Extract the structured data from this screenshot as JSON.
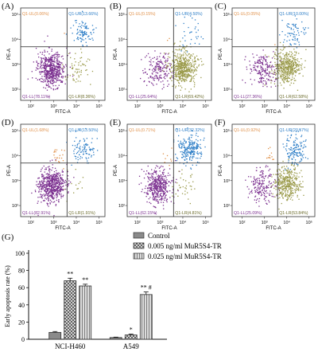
{
  "panels": [
    {
      "label": "(A)",
      "q_ul": "Q1-UL(0.06%)",
      "q_ur": "Q1-UR(13.66%)",
      "q_ll": "Q1-LL(78.11%)",
      "q_lr": "Q1-LR(8.36%)",
      "ul": 0.06,
      "ur": 13.66,
      "ll": 78.11,
      "lr": 8.36
    },
    {
      "label": "(B)",
      "q_ul": "Q1-UL(0.15%)",
      "q_ur": "Q1-UR(4.50%)",
      "q_ll": "Q1-LL(25.64%)",
      "q_lr": "Q1-LR(69.42%)",
      "ul": 0.15,
      "ur": 4.5,
      "ll": 25.64,
      "lr": 69.42
    },
    {
      "label": "(C)",
      "q_ul": "Q1-UL(0.05%)",
      "q_ur": "Q1-UR(10.00%)",
      "q_ll": "Q1-LL(27.36%)",
      "q_lr": "Q1-LR(62.58%)",
      "ul": 0.05,
      "ur": 10.0,
      "ll": 27.36,
      "lr": 62.58
    },
    {
      "label": "(D)",
      "q_ul": "Q1-UL(1.68%)",
      "q_ur": "Q1-UR(13.50%)",
      "q_ll": "Q1-LL(82.91%)",
      "q_lr": "Q1-LR(1.91%)",
      "ul": 1.68,
      "ur": 13.5,
      "ll": 82.91,
      "lr": 1.91
    },
    {
      "label": "(E)",
      "q_ul": "Q1-UL(0.71%)",
      "q_ur": "Q1-UR(32.32%)",
      "q_ll": "Q1-LL(62.15%)",
      "q_lr": "Q1-LR(4.81%)",
      "ul": 0.71,
      "ur": 32.32,
      "ll": 62.15,
      "lr": 4.81
    },
    {
      "label": "(F)",
      "q_ul": "Q1-UL(0.92%)",
      "q_ur": "Q1-UR(20.57%)",
      "q_ll": "Q1-LL(25.09%)",
      "q_lr": "Q1-LR(53.84%)",
      "ul": 0.92,
      "ur": 20.57,
      "ll": 25.09,
      "lr": 53.84
    }
  ],
  "flow_axes": {
    "xlabel": "FITC-A",
    "ylabel": "PE-A",
    "ticks": [
      "10²",
      "10³",
      "10⁴",
      "10⁵"
    ]
  },
  "colors": {
    "ll": "#7b2f8f",
    "lr": "#9a9a4a",
    "ur": "#2f7fc7",
    "ul": "#e0914a",
    "quad": "#222222",
    "control": "#8a8a8a",
    "mid": "#bbbbbb",
    "high": "#b5b5b5",
    "bar_stroke": "#333333"
  },
  "bar_panel_label": "(G)",
  "chart_data": {
    "type": "bar",
    "title": "",
    "ylabel": "Early apoptosis rate (%)",
    "xlabel": "",
    "ylim": [
      0,
      100
    ],
    "yticks": [
      0,
      20,
      40,
      60,
      80,
      100
    ],
    "categories": [
      "NCI-H460",
      "A549"
    ],
    "series": [
      {
        "name": "Control",
        "values": [
          8,
          2
        ],
        "errors": [
          1,
          0.5
        ],
        "sig": [
          "",
          ""
        ]
      },
      {
        "name": "0.005 ng/ml MuR5S4-TR",
        "values": [
          68,
          5
        ],
        "errors": [
          3,
          1
        ],
        "sig": [
          "**",
          "*"
        ]
      },
      {
        "name": "0.025 ng/ml MuR5S4-TR",
        "values": [
          62,
          52
        ],
        "errors": [
          2,
          3
        ],
        "sig": [
          "**",
          "** #"
        ]
      }
    ],
    "legend_position": "top-right",
    "grid": false
  }
}
